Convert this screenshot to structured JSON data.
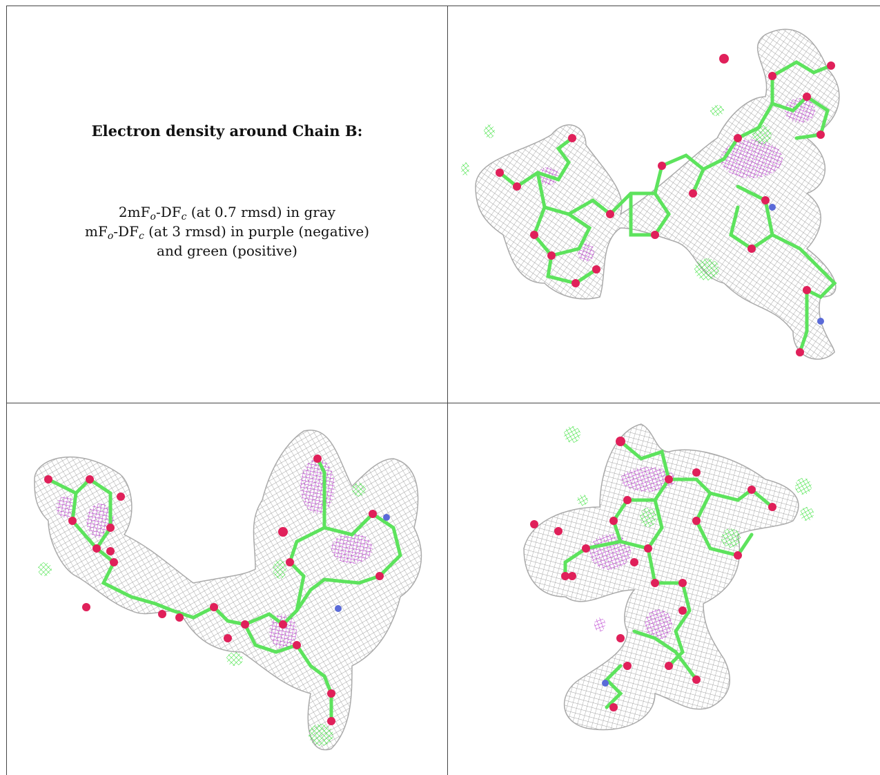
{
  "caption": {
    "title": "Electron density around Chain B:",
    "line1": {
      "a": "2mF",
      "sub_o": "o",
      "b": "-DF",
      "sub_c": "c",
      "c": " (at 0.7 rmsd) in gray"
    },
    "line2": {
      "a": "mF",
      "sub_o": "o",
      "b": "-DF",
      "sub_c": "c",
      "c": " (at 3 rmsd) in purple (negative)"
    },
    "line3": "and green (positive)"
  },
  "colors": {
    "density_2fofc": "#b4b4b4",
    "density_negative": "#a020c0",
    "density_positive": "#33ee33",
    "carbon_bonds": "#66ee66",
    "oxygen_atoms": "#e0205a",
    "nitrogen_atoms": "#5a6ad8"
  },
  "panels": [
    {
      "name": "top-right",
      "view": "view-1"
    },
    {
      "name": "bottom-left",
      "view": "view-2"
    },
    {
      "name": "bottom-right",
      "view": "view-3"
    }
  ]
}
